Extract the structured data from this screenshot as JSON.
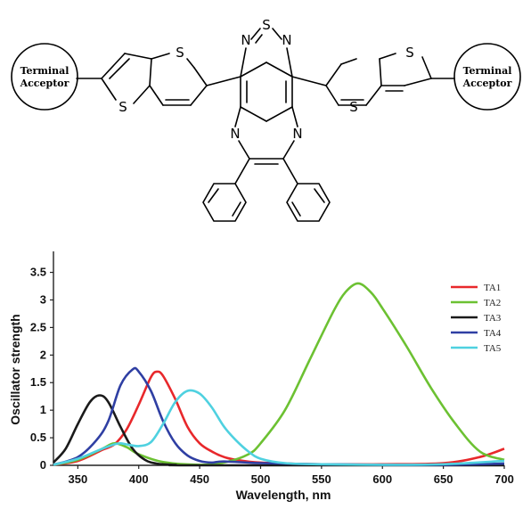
{
  "molecule": {
    "terminal_acceptor_left": [
      "Terminal",
      "Acceptor"
    ],
    "terminal_acceptor_right": [
      "Terminal",
      "Acceptor"
    ],
    "atoms": {
      "thiadiazole_s": "S",
      "thiadiazole_n_left": "N",
      "thiadiazole_n_right": "N",
      "pyrazine_n_left": "N",
      "pyrazine_n_right": "N",
      "left_thiophene_s_top": "S",
      "left_thiophene_s_bottom": "S",
      "right_thiophene_s_top": "S",
      "right_thiophene_s_bottom": "S"
    }
  },
  "chart_data": {
    "type": "line",
    "title": "",
    "xlabel": "Wavelength, nm",
    "ylabel": "Oscillator strength",
    "xlim": [
      330,
      700
    ],
    "ylim": [
      0,
      3.8
    ],
    "xticks": [
      "350",
      "400",
      "450",
      "500",
      "550",
      "600",
      "650",
      "700"
    ],
    "yticks": [
      "0",
      "0.5",
      "1",
      "1.5",
      "2",
      "2.5",
      "3",
      "3.5"
    ],
    "grid": false,
    "legend_position": "top-right",
    "series": [
      {
        "name": "TA1",
        "color": "#e8282b",
        "x": [
          330,
          350,
          370,
          380,
          390,
          400,
          410,
          415,
          420,
          430,
          440,
          450,
          460,
          470,
          480,
          500,
          550,
          600,
          650,
          680,
          700
        ],
        "y": [
          0.01,
          0.08,
          0.28,
          0.38,
          0.65,
          1.1,
          1.6,
          1.7,
          1.62,
          1.2,
          0.7,
          0.4,
          0.25,
          0.15,
          0.1,
          0.05,
          0.02,
          0.02,
          0.04,
          0.15,
          0.3
        ]
      },
      {
        "name": "TA2",
        "color": "#6cc132",
        "x": [
          330,
          350,
          370,
          380,
          390,
          400,
          420,
          450,
          470,
          490,
          500,
          520,
          540,
          560,
          570,
          580,
          590,
          600,
          620,
          640,
          660,
          680,
          700
        ],
        "y": [
          0.01,
          0.1,
          0.3,
          0.4,
          0.33,
          0.2,
          0.06,
          0.01,
          0.05,
          0.2,
          0.4,
          1.0,
          1.9,
          2.8,
          3.15,
          3.3,
          3.15,
          2.85,
          2.15,
          1.4,
          0.75,
          0.25,
          0.1
        ]
      },
      {
        "name": "TA3",
        "color": "#1a1a1a",
        "x": [
          330,
          340,
          350,
          360,
          368,
          375,
          385,
          395,
          405,
          415,
          430,
          450,
          700
        ],
        "y": [
          0.05,
          0.3,
          0.75,
          1.15,
          1.27,
          1.15,
          0.7,
          0.3,
          0.1,
          0.03,
          0.01,
          0.0,
          0.0
        ]
      },
      {
        "name": "TA4",
        "color": "#2f3fa3",
        "x": [
          330,
          350,
          365,
          375,
          385,
          395,
          400,
          410,
          420,
          430,
          440,
          450,
          460,
          470,
          500,
          550,
          600,
          650,
          700
        ],
        "y": [
          0.01,
          0.15,
          0.45,
          0.8,
          1.45,
          1.74,
          1.7,
          1.35,
          0.8,
          0.4,
          0.18,
          0.08,
          0.05,
          0.07,
          0.04,
          0.02,
          0.01,
          0.01,
          0.03
        ]
      },
      {
        "name": "TA5",
        "color": "#4fd1e0",
        "x": [
          330,
          350,
          370,
          380,
          385,
          390,
          400,
          410,
          420,
          430,
          440,
          450,
          460,
          470,
          480,
          490,
          500,
          520,
          550,
          600,
          650,
          700
        ],
        "y": [
          0.01,
          0.12,
          0.3,
          0.38,
          0.4,
          0.38,
          0.35,
          0.42,
          0.75,
          1.15,
          1.35,
          1.3,
          1.05,
          0.7,
          0.45,
          0.25,
          0.12,
          0.04,
          0.02,
          0.01,
          0.02,
          0.08
        ]
      }
    ]
  }
}
